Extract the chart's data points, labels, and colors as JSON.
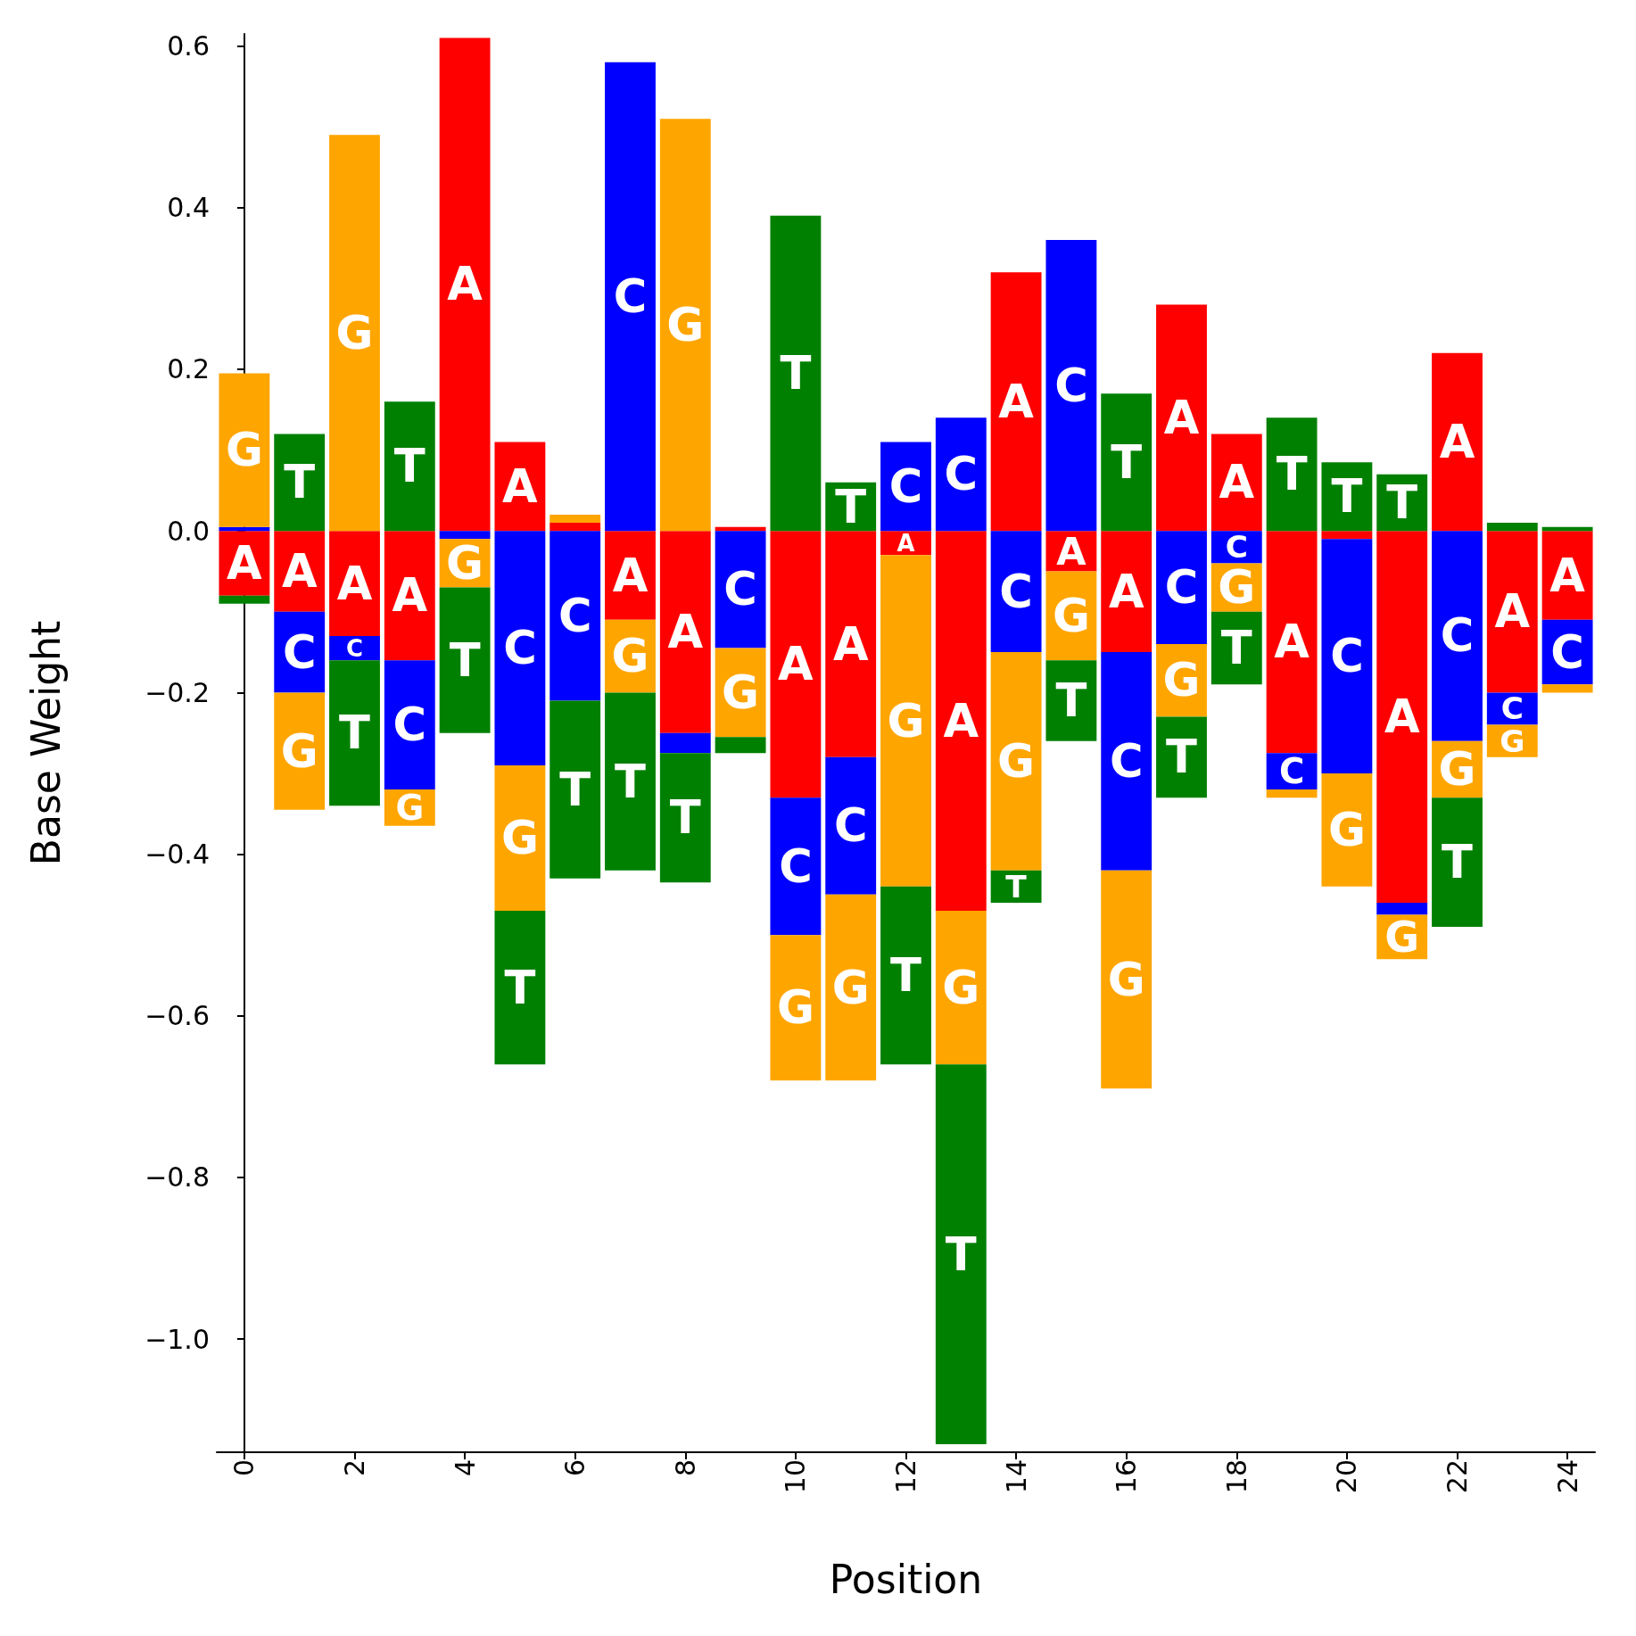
{
  "chart_data": {
    "type": "bar",
    "stacked": true,
    "xlabel": "Position",
    "ylabel": "Base Weight",
    "x": [
      0,
      1,
      2,
      3,
      4,
      5,
      6,
      7,
      8,
      9,
      10,
      11,
      12,
      13,
      14,
      15,
      16,
      17,
      18,
      19,
      20,
      21,
      22,
      23,
      24
    ],
    "xlim": [
      -0.5,
      24.5
    ],
    "xticks": [
      0,
      2,
      4,
      6,
      8,
      10,
      12,
      14,
      16,
      18,
      20,
      22,
      24
    ],
    "ylim": [
      -1.14,
      0.615
    ],
    "yticks": [
      {
        "value": -1,
        "label": "−1.0"
      },
      {
        "value": -0.8,
        "label": "−0.8"
      },
      {
        "value": -0.6,
        "label": "−0.6"
      },
      {
        "value": -0.4,
        "label": "−0.4"
      },
      {
        "value": -0.2,
        "label": "−0.2"
      },
      {
        "value": 0,
        "label": "0.0"
      },
      {
        "value": 0.2,
        "label": "0.2"
      },
      {
        "value": 0.4,
        "label": "0.4"
      },
      {
        "value": 0.6,
        "label": "0.6"
      }
    ],
    "grid": false,
    "series": [
      {
        "name": "A",
        "color": "#ff0000",
        "values": [
          -0.08,
          -0.1,
          -0.13,
          -0.16,
          0.61,
          0.11,
          0.01,
          -0.11,
          -0.25,
          0.005,
          -0.33,
          -0.28,
          -0.03,
          -0.47,
          0.32,
          -0.05,
          -0.15,
          0.28,
          0.12,
          -0.275,
          -0.01,
          -0.46,
          0.22,
          -0.2,
          -0.11
        ]
      },
      {
        "name": "C",
        "color": "#0000ff",
        "values": [
          0.005,
          -0.1,
          -0.03,
          -0.16,
          -0.01,
          -0.29,
          -0.21,
          0.58,
          -0.025,
          -0.145,
          -0.17,
          -0.17,
          0.11,
          0.14,
          -0.15,
          0.36,
          -0.27,
          -0.14,
          -0.04,
          -0.045,
          -0.29,
          -0.015,
          -0.26,
          -0.04,
          -0.08
        ]
      },
      {
        "name": "G",
        "color": "#ffa500",
        "values": [
          0.19,
          -0.145,
          0.49,
          -0.045,
          -0.06,
          -0.18,
          0.01,
          -0.09,
          0.51,
          -0.11,
          -0.18,
          -0.23,
          -0.41,
          -0.19,
          -0.27,
          -0.11,
          -0.27,
          -0.09,
          -0.06,
          -0.01,
          -0.14,
          -0.055,
          -0.07,
          -0.04,
          -0.01
        ]
      },
      {
        "name": "T",
        "color": "#008000",
        "values": [
          -0.01,
          0.12,
          -0.18,
          0.16,
          -0.18,
          -0.19,
          -0.22,
          -0.22,
          -0.16,
          -0.02,
          0.39,
          0.06,
          -0.22,
          -0.47,
          -0.04,
          -0.1,
          0.17,
          -0.1,
          -0.09,
          0.14,
          0.085,
          0.07,
          -0.16,
          0.01,
          0.005
        ]
      }
    ]
  }
}
